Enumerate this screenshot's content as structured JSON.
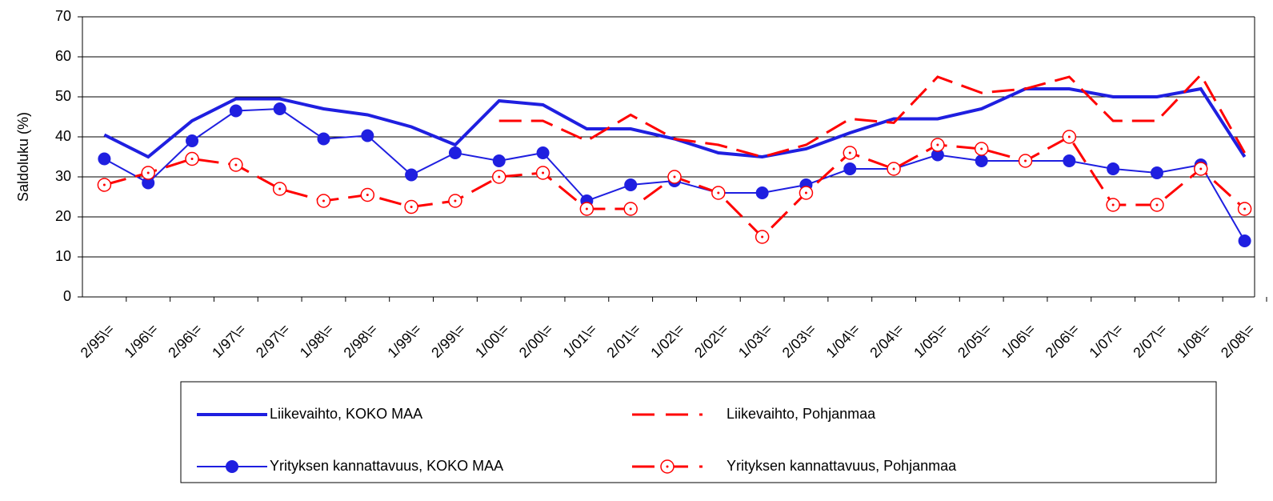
{
  "chart_data": {
    "type": "line",
    "y_label": "Saldoluku (%)",
    "categories": [
      "2/95\\=",
      "1/96\\=",
      "2/96\\=",
      "1/97\\=",
      "2/97\\=",
      "1/98\\=",
      "2/98\\=",
      "1/99\\=",
      "2/99\\=",
      "1/00\\=",
      "2/00\\=",
      "1/01\\=",
      "2/01\\=",
      "1/02\\=",
      "2/02\\=",
      "1/03\\=",
      "2/03\\=",
      "1/04\\=",
      "2/04\\=",
      "1/05\\=",
      "2/05\\=",
      "1/06\\=",
      "2/06\\=",
      "1/07\\=",
      "2/07\\=",
      "1/08\\=",
      "2/08\\="
    ],
    "series": [
      {
        "name": "Liikevaihto, KOKO MAA",
        "color": "#1f1fe0",
        "line_width": 4,
        "dash": false,
        "marker": "none",
        "values": [
          40.5,
          35,
          44,
          49.5,
          49.5,
          47,
          45.5,
          42.5,
          38,
          49,
          48,
          42,
          42,
          39.5,
          36,
          35,
          37,
          41,
          44.5,
          44.5,
          47,
          52,
          52,
          50,
          50,
          52,
          35
        ]
      },
      {
        "name": "Liikevaihto, Pohjanmaa",
        "color": "#ff0000",
        "line_width": 3,
        "dash": true,
        "marker": "none",
        "values": [
          null,
          null,
          null,
          null,
          null,
          null,
          null,
          null,
          null,
          44,
          44,
          39,
          45.5,
          39.5,
          38,
          35,
          38,
          44.5,
          43.5,
          55,
          51,
          52,
          55,
          44,
          44,
          55.5,
          36
        ]
      },
      {
        "name": "Yrityksen kannattavuus, KOKO MAA",
        "color": "#1f1fe0",
        "line_width": 2,
        "dash": false,
        "marker": "filled",
        "values": [
          34.5,
          28.5,
          39,
          46.5,
          47,
          39.5,
          40.3,
          30.5,
          36,
          34,
          36,
          24,
          28,
          29,
          26,
          26,
          28,
          32,
          32,
          35.5,
          34,
          34,
          34,
          32,
          31,
          33,
          14
        ]
      },
      {
        "name": "Yrityksen kannattavuus, Pohjanmaa",
        "color": "#ff0000",
        "line_width": 3,
        "dash": true,
        "marker": "open",
        "values": [
          28,
          31,
          34.5,
          33,
          27,
          24,
          25.5,
          22.5,
          24,
          30,
          31,
          22,
          22,
          30,
          26,
          15,
          26,
          36,
          32,
          38,
          37,
          34,
          40,
          23,
          23,
          32,
          22
        ]
      }
    ],
    "ylim": [
      0,
      70
    ],
    "yticks": [
      0,
      10,
      20,
      30,
      40,
      50,
      60,
      70
    ],
    "grid": true
  }
}
